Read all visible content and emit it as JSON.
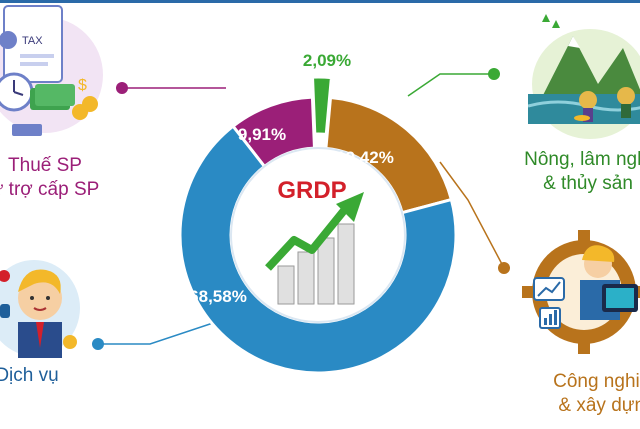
{
  "chart_data": {
    "type": "pie",
    "center_label": "GRDP",
    "categories": [
      "Thuế SP trừ trợ cấp SP",
      "Nông, lâm nghiệp & thủy sản",
      "Công nghiệp & xây dựng",
      "Dịch vụ"
    ],
    "slices": [
      {
        "label_line1": "Thuế SP",
        "label_line2": "ư trợ cấp SP",
        "value": 9.91,
        "value_label": "9,91%",
        "color": "#9b1f78"
      },
      {
        "label_line1": "",
        "label_line2": "",
        "value": 2.09,
        "value_label": "2,09%",
        "color": "#3aa935"
      },
      {
        "label_line1": "Nông, lâm nghi",
        "label_line2": "& thủy sản",
        "value": 19.42,
        "value_label": "19,42%",
        "color": "#b8731c"
      },
      {
        "label_line1": "Công nghiệp",
        "label_line2": "& xây dựng",
        "value": 68.58,
        "value_label": "68,58%",
        "color": "#2a8ac4"
      }
    ],
    "service_label": "Dịch vụ",
    "industry_label": "Công nghiệp",
    "industry_label2": "& xây dựng",
    "colors": {
      "tax": "#9b1f78",
      "agri_small": "#3aa935",
      "agri": "#b8731c",
      "services": "#2a8ac4",
      "center_text": "#d3202a",
      "arrow": "#3aa935"
    }
  },
  "labels": {
    "tax_1": "Thuế SP",
    "tax_2": "ư trợ cấp SP",
    "agri_1": "Nông, lâm nghi",
    "agri_2": "& thủy sản",
    "ind_1": "Công nghiệp",
    "ind_2": "& xây dựng",
    "svc": "Dịch vụ",
    "tax_icon_text": "TAX"
  }
}
